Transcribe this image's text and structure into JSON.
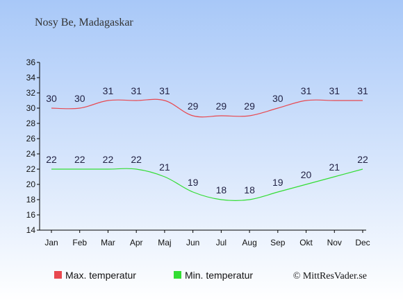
{
  "chart_data": {
    "type": "line",
    "title": "Nosy Be, Madagaskar",
    "categories": [
      "Jan",
      "Feb",
      "Mar",
      "Apr",
      "Maj",
      "Jun",
      "Jul",
      "Aug",
      "Sep",
      "Okt",
      "Nov",
      "Dec"
    ],
    "series": [
      {
        "name": "Max. temperatur",
        "color": "#e8484f",
        "values": [
          30,
          30,
          31,
          31,
          31,
          29,
          29,
          29,
          30,
          31,
          31,
          31
        ]
      },
      {
        "name": "Min. temperatur",
        "color": "#33dd33",
        "values": [
          22,
          22,
          22,
          22,
          21,
          19,
          18,
          18,
          19,
          20,
          21,
          22
        ]
      }
    ],
    "ylim": [
      14,
      36
    ],
    "yticks": [
      14,
      16,
      18,
      20,
      22,
      24,
      26,
      28,
      30,
      32,
      34,
      36
    ],
    "grid": false,
    "legend": "bottom-left"
  },
  "credit": "© MittResVader.se",
  "colors": {
    "background_top": "#a8c8f8",
    "background_bottom": "#ffffff"
  }
}
